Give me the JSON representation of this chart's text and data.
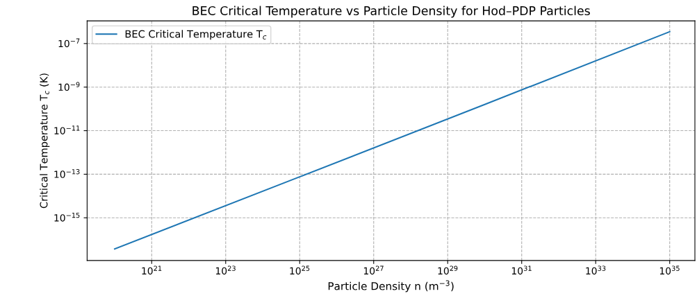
{
  "chart_data": {
    "type": "line",
    "title": "BEC Critical Temperature vs Particle Density for Hod–PDP Particles",
    "xlabel": "Particle Density n (m$^{−3}$)",
    "ylabel": "Critical Temperature T$_{c}$ (K)",
    "x": [
      1e+20,
      1e+25,
      1e+30,
      1e+35
    ],
    "series": [
      {
        "name": "BEC Critical Temperature T$_{c}$",
        "color": "#1f77b4",
        "values": [
          3.7e-17,
          7.6e-14,
          1.6e-10,
          3.5e-07
        ]
      }
    ],
    "log": "xy",
    "xlim": [
      1.8e+19,
      4.8e+35
    ],
    "ylim": [
      1.1e-17,
      1.1e-06
    ],
    "xticks": [
      {
        "value": 1e+21,
        "label": "10$^{21}$"
      },
      {
        "value": 1e+23,
        "label": "10$^{23}$"
      },
      {
        "value": 1e+25,
        "label": "10$^{25}$"
      },
      {
        "value": 1e+27,
        "label": "10$^{27}$"
      },
      {
        "value": 1e+29,
        "label": "10$^{29}$"
      },
      {
        "value": 1e+31,
        "label": "10$^{31}$"
      },
      {
        "value": 1e+33,
        "label": "10$^{33}$"
      },
      {
        "value": 1e+35,
        "label": "10$^{35}$"
      }
    ],
    "yticks": [
      {
        "value": 1e-15,
        "label": "10$^{−15}$"
      },
      {
        "value": 1e-13,
        "label": "10$^{−13}$"
      },
      {
        "value": 1e-11,
        "label": "10$^{−11}$"
      },
      {
        "value": 1e-09,
        "label": "10$^{−9}$"
      },
      {
        "value": 1e-07,
        "label": "10$^{−7}$"
      }
    ],
    "grid": true,
    "legend": "top left",
    "line_style": "solid",
    "marker": "none"
  }
}
